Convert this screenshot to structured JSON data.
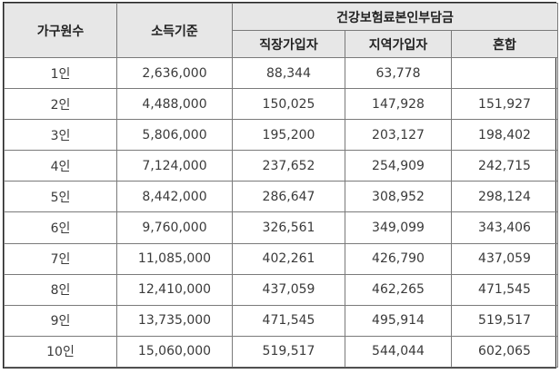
{
  "table": {
    "headers": {
      "household": "가구원수",
      "income": "소득기준",
      "premium_group": "건강보험료본인부담금",
      "employee": "직장가입자",
      "regional": "지역가입자",
      "mixed": "혼합"
    },
    "rows": [
      {
        "household": "1인",
        "income": "2,636,000",
        "employee": "88,344",
        "regional": "63,778",
        "mixed": ""
      },
      {
        "household": "2인",
        "income": "4,488,000",
        "employee": "150,025",
        "regional": "147,928",
        "mixed": "151,927"
      },
      {
        "household": "3인",
        "income": "5,806,000",
        "employee": "195,200",
        "regional": "203,127",
        "mixed": "198,402"
      },
      {
        "household": "4인",
        "income": "7,124,000",
        "employee": "237,652",
        "regional": "254,909",
        "mixed": "242,715"
      },
      {
        "household": "5인",
        "income": "8,442,000",
        "employee": "286,647",
        "regional": "308,952",
        "mixed": "298,124"
      },
      {
        "household": "6인",
        "income": "9,760,000",
        "employee": "326,561",
        "regional": "349,099",
        "mixed": "343,406"
      },
      {
        "household": "7인",
        "income": "11,085,000",
        "employee": "402,261",
        "regional": "426,790",
        "mixed": "437,059"
      },
      {
        "household": "8인",
        "income": "12,410,000",
        "employee": "437,059",
        "regional": "462,265",
        "mixed": "471,545"
      },
      {
        "household": "9인",
        "income": "13,735,000",
        "employee": "471,545",
        "regional": "495,914",
        "mixed": "519,517"
      },
      {
        "household": "10인",
        "income": "15,060,000",
        "employee": "519,517",
        "regional": "544,044",
        "mixed": "602,065"
      }
    ]
  }
}
